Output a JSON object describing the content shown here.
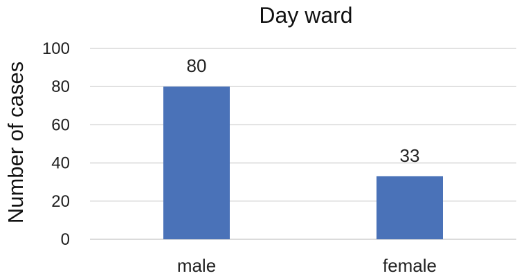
{
  "chart_data": {
    "type": "bar",
    "title": "Day ward",
    "xlabel": "",
    "ylabel": "Number of cases",
    "categories": [
      "male",
      "female"
    ],
    "values": [
      80,
      33
    ],
    "data_labels": [
      "80",
      "33"
    ],
    "ylim": [
      0,
      100
    ],
    "yticks": [
      0,
      20,
      40,
      60,
      80,
      100
    ],
    "ytick_labels": [
      "0",
      "20",
      "40",
      "60",
      "80",
      "100"
    ],
    "grid": true,
    "legend": "none",
    "colors": {
      "bar": "#4a72b8",
      "grid": "#d9d9d9",
      "text": "#222222"
    }
  }
}
